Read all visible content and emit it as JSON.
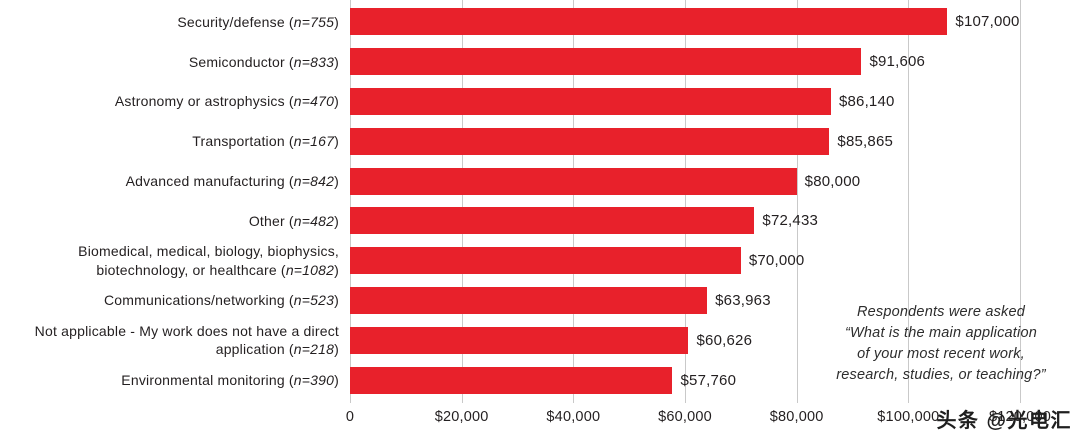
{
  "chart_data": {
    "type": "bar",
    "orientation": "horizontal",
    "title": "",
    "xlabel": "",
    "ylabel": "",
    "xlim": [
      0,
      120000
    ],
    "grid": true,
    "bar_color": "#e8212b",
    "x_ticks": [
      "0",
      "$20,000",
      "$40,000",
      "$60,000",
      "$80,000",
      "$100,000",
      "$120,000"
    ],
    "x_tick_values": [
      0,
      20000,
      40000,
      60000,
      80000,
      100000,
      120000
    ],
    "categories": [
      {
        "label": "Security/defense",
        "n": "n=755",
        "value": 107000,
        "value_label": "$107,000"
      },
      {
        "label": "Semiconductor",
        "n": "n=833",
        "value": 91606,
        "value_label": "$91,606"
      },
      {
        "label": "Astronomy or astrophysics",
        "n": "n=470",
        "value": 86140,
        "value_label": "$86,140"
      },
      {
        "label": "Transportation",
        "n": "n=167",
        "value": 85865,
        "value_label": "$85,865"
      },
      {
        "label": "Advanced manufacturing",
        "n": "n=842",
        "value": 80000,
        "value_label": "$80,000"
      },
      {
        "label": "Other",
        "n": "n=482",
        "value": 72433,
        "value_label": "$72,433"
      },
      {
        "label": "Biomedical, medical, biology, biophysics, biotechnology, or healthcare",
        "n": "n=1082",
        "value": 70000,
        "value_label": "$70,000"
      },
      {
        "label": "Communications/networking",
        "n": "n=523",
        "value": 63963,
        "value_label": "$63,963"
      },
      {
        "label": "Not applicable - My work does not have a direct application",
        "n": "n=218",
        "value": 60626,
        "value_label": "$60,626"
      },
      {
        "label": "Environmental monitoring",
        "n": "n=390",
        "value": 57760,
        "value_label": "$57,760"
      }
    ],
    "annotation": "Respondents were asked\n“What is the main application\nof your most recent work,\nresearch, studies, or teaching?”"
  },
  "watermark": {
    "text": "头条 @光电汇"
  }
}
